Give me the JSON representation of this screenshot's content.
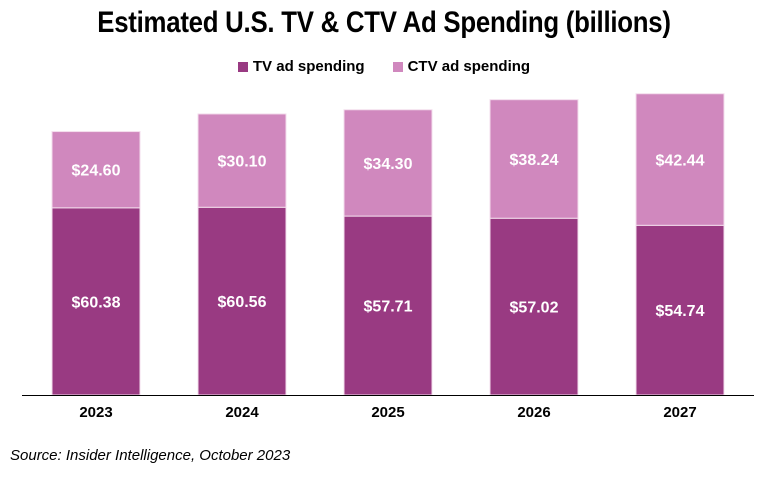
{
  "chart_data": {
    "type": "bar",
    "stacked": true,
    "title": "Estimated U.S. TV & CTV Ad Spending (billions)",
    "categories": [
      "2023",
      "2024",
      "2025",
      "2026",
      "2027"
    ],
    "series": [
      {
        "name": "TV ad spending",
        "values": [
          60.38,
          60.56,
          57.71,
          57.02,
          54.74
        ],
        "labels": [
          "$60.38",
          "$60.56",
          "$57.71",
          "$57.02",
          "$54.74"
        ],
        "color": "#993A82"
      },
      {
        "name": "CTV ad spending",
        "values": [
          24.6,
          30.1,
          34.3,
          38.24,
          42.44
        ],
        "labels": [
          "$24.60",
          "$30.10",
          "$34.30",
          "$38.24",
          "$42.44"
        ],
        "color": "#D088BE"
      }
    ],
    "xlabel": "",
    "ylabel": "",
    "ylim": [
      0,
      100
    ],
    "grid": false,
    "legend": "top"
  },
  "source": "Source: Insider Intelligence, October 2023"
}
